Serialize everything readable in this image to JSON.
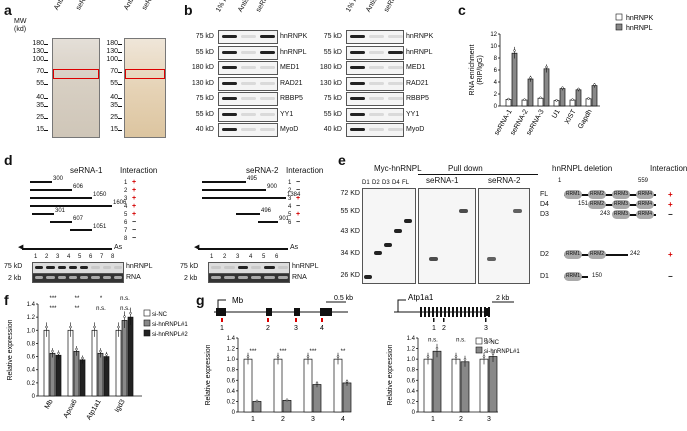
{
  "panels": {
    "a": "a",
    "b": "b",
    "c": "c",
    "d": "d",
    "e": "e",
    "f": "f",
    "g": "g"
  },
  "a": {
    "mw_label": "MW\n(kd)",
    "lanes1": [
      "Antisense",
      "seRNA-1"
    ],
    "lanes2": [
      "Antisense",
      "seRNA-2"
    ],
    "mw": [
      "180",
      "130",
      "100",
      "70",
      "55",
      "40",
      "35",
      "25",
      "15"
    ],
    "mw2": [
      "180",
      "130",
      "100",
      "70",
      "55",
      "40",
      "35",
      "25",
      "15"
    ]
  },
  "b": {
    "lanes1": [
      "1% Input",
      "Antisense",
      "seRNA-1"
    ],
    "lanes2": [
      "1% Input",
      "Antisense",
      "seRNA-2"
    ],
    "rows": [
      {
        "kd": "75 kD",
        "name": "hnRNPK"
      },
      {
        "kd": "55 kD",
        "name": "hnRNPL"
      },
      {
        "kd": "180 kD",
        "name": "MED1"
      },
      {
        "kd": "130 kD",
        "name": "RAD21"
      },
      {
        "kd": "75 kD",
        "name": "RBBP5"
      },
      {
        "kd": "55 kD",
        "name": "YY1"
      },
      {
        "kd": "40 kD",
        "name": "MyoD"
      }
    ]
  },
  "c": {
    "chart_data": {
      "type": "bar",
      "ylabel": "RNA enrichment\n(RIP/IgG)",
      "ylim": [
        0,
        12
      ],
      "yticks": [
        "0",
        "2",
        "4",
        "6",
        "8",
        "10",
        "12"
      ],
      "categories": [
        "seRNA-1",
        "seRNA-2",
        "seRNA-3",
        "U1",
        "XIST",
        "Gapdh"
      ],
      "series": [
        {
          "name": "hnRNPK",
          "color": "#ffffff",
          "values": [
            1.1,
            1.0,
            1.3,
            0.9,
            1.0,
            1.2
          ]
        },
        {
          "name": "hnRNPL",
          "color": "#888888",
          "values": [
            8.8,
            4.5,
            6.2,
            2.9,
            2.7,
            3.4
          ]
        }
      ]
    }
  },
  "d": {
    "left": {
      "title": "seRNA-1",
      "interaction": "Interaction",
      "frags": [
        "300",
        "606",
        "1050",
        "1606",
        "301",
        "607",
        "1051"
      ],
      "arrow": "As",
      "nums": [
        "1",
        "2",
        "3",
        "4",
        "5",
        "6",
        "7",
        "8"
      ],
      "marks": [
        "+",
        "+",
        "+",
        "+",
        "+",
        "−",
        "−",
        "−"
      ],
      "kd": "75 kD",
      "kb": "2 kb",
      "l1": "hnRNPL",
      "l2": "RNA"
    },
    "right": {
      "title": "seRNA-2",
      "interaction": "Interaction",
      "frags": [
        "495",
        "900",
        "1384",
        "496",
        "901"
      ],
      "arrow": "As",
      "nums": [
        "1",
        "2",
        "3",
        "4",
        "5",
        "6"
      ],
      "marks": [
        "−",
        "−",
        "+",
        "−",
        "+",
        "−"
      ],
      "kd": "75 kD",
      "kb": "2 kb",
      "l1": "hnRNPL",
      "l2": "RNA"
    }
  },
  "e": {
    "myc": "Myc-hnRNPL",
    "pulldown": "Pull down",
    "se1": "seRNA-1",
    "se2": "seRNA-2",
    "lanes": [
      "D1",
      "D2",
      "D3",
      "D4",
      "FL"
    ],
    "kd": [
      "72 KD",
      "55 KD",
      "43 KD",
      "34 KD",
      "26 KD"
    ],
    "deletion": "hnRNPL deletion",
    "interaction": "Interaction",
    "start": "1",
    "end": "559",
    "rows": [
      {
        "name": "FL",
        "num": "",
        "mark": "+"
      },
      {
        "name": "D4",
        "num": "151",
        "mark": "+"
      },
      {
        "name": "D3",
        "num": "243",
        "mark": "−"
      },
      {
        "name": "D2",
        "num": "242",
        "mark": "+"
      },
      {
        "name": "D1",
        "num": "150",
        "mark": "−"
      }
    ],
    "rrm": [
      "RRM1",
      "RRM2",
      "RRM3",
      "RRM4"
    ]
  },
  "f": {
    "chart_data": {
      "type": "bar",
      "ylabel": "Relative expression",
      "ylim": [
        0,
        1.4
      ],
      "yticks": [
        "0",
        "0.2",
        "0.4",
        "0.6",
        "0.8",
        "1.0",
        "1.2",
        "1.4"
      ],
      "categories": [
        "Mb",
        "Apoa6",
        "Atp1a1",
        "Igd3"
      ],
      "series": [
        {
          "name": "si-NC",
          "color": "#ffffff",
          "values": [
            1.0,
            1.0,
            1.0,
            1.0
          ]
        },
        {
          "name": "si-hnRNPL#1",
          "color": "#888888",
          "values": [
            0.65,
            0.68,
            0.65,
            1.15
          ]
        },
        {
          "name": "si-hnRNPL#2",
          "color": "#222222",
          "values": [
            0.62,
            0.55,
            0.6,
            1.2
          ]
        }
      ],
      "sig_top": [
        "***",
        "**",
        "*",
        "n.s."
      ],
      "sig_bot": [
        "***",
        "**",
        "n.s.",
        "n.s."
      ]
    }
  },
  "g": {
    "left_gene": "Mb",
    "left_scale": "0.5 kb",
    "left_sites": [
      "1",
      "2",
      "3",
      "4"
    ],
    "right_gene": "Atp1a1",
    "right_scale": "2 kb",
    "right_sites": [
      "1",
      "2",
      "3"
    ],
    "left_chart": {
      "type": "bar",
      "ylabel": "Relative expression",
      "ylim": [
        0,
        1.4
      ],
      "yticks": [
        "0",
        "0.2",
        "0.4",
        "0.6",
        "0.8",
        "1.0",
        "1.2",
        "1.4"
      ],
      "categories": [
        "1",
        "2",
        "3",
        "4"
      ],
      "series": [
        {
          "name": "si-NC",
          "color": "#ffffff",
          "values": [
            1.0,
            1.0,
            1.0,
            1.0
          ]
        },
        {
          "name": "si-hnRNPL#1",
          "color": "#888888",
          "values": [
            0.2,
            0.22,
            0.52,
            0.55
          ]
        }
      ],
      "sig": [
        "***",
        "***",
        "***",
        "**"
      ]
    },
    "right_chart": {
      "type": "bar",
      "ylabel": "Relative expression",
      "ylim": [
        0,
        1.4
      ],
      "yticks": [
        "0",
        "0.2",
        "0.4",
        "0.6",
        "0.8",
        "1.0",
        "1.2",
        "1.4"
      ],
      "categories": [
        "1",
        "2",
        "3"
      ],
      "series": [
        {
          "name": "si-NC",
          "color": "#ffffff",
          "values": [
            1.0,
            1.0,
            1.0
          ]
        },
        {
          "name": "si-hnRNPL#1",
          "color": "#888888",
          "values": [
            1.15,
            0.95,
            1.05
          ]
        }
      ],
      "sig": [
        "n.s.",
        "n.s.",
        "n.s."
      ]
    }
  }
}
